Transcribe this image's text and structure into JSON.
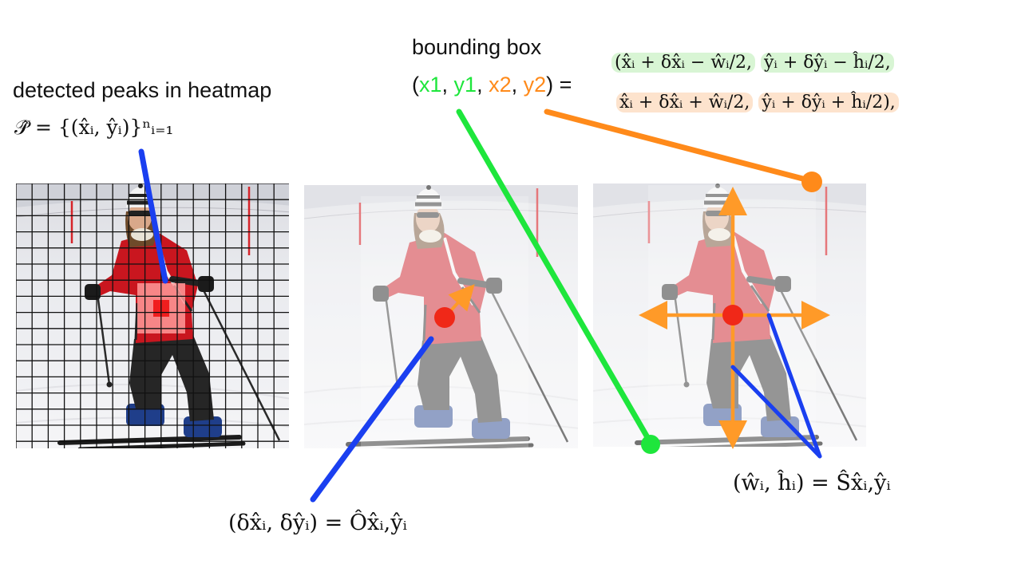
{
  "labels": {
    "peaks_title": "detected peaks in heatmap",
    "peaks_formula": "𝒫̂ = {(x̂ᵢ, ŷᵢ)}ⁿᵢ₌₁",
    "bbox_title": "bounding box",
    "bbox_open": "(",
    "bbox_x1": "x1",
    "bbox_sep1": ", ",
    "bbox_y1": "y1",
    "bbox_sep2": ", ",
    "bbox_x2": "x2",
    "bbox_sep3": ", ",
    "bbox_y2": "y2",
    "bbox_close": ") =",
    "bbox_formula_line1_a": "(x̂ᵢ + δx̂ᵢ − ŵᵢ/2,",
    "bbox_formula_line1_b": "ŷᵢ + δŷᵢ − ĥᵢ/2,",
    "bbox_formula_line2_a": "x̂ᵢ + δx̂ᵢ + ŵᵢ/2,",
    "bbox_formula_line2_b": "ŷᵢ + δŷᵢ + ĥᵢ/2),",
    "offset_formula": "(δx̂ᵢ, δŷᵢ) = Ôx̂ᵢ,ŷᵢ",
    "size_formula": "(ŵᵢ, ĥᵢ) = Ŝx̂ᵢ,ŷᵢ"
  },
  "colors": {
    "green": "#1ee63c",
    "orange": "#ff8a1a",
    "blue": "#1a3ff0",
    "red": "#f02818",
    "heat_light": "#ff9a9a",
    "heat_dark": "#f01e1e"
  },
  "panels": [
    "heatmap-grid-panel",
    "offset-panel",
    "size-panel"
  ]
}
